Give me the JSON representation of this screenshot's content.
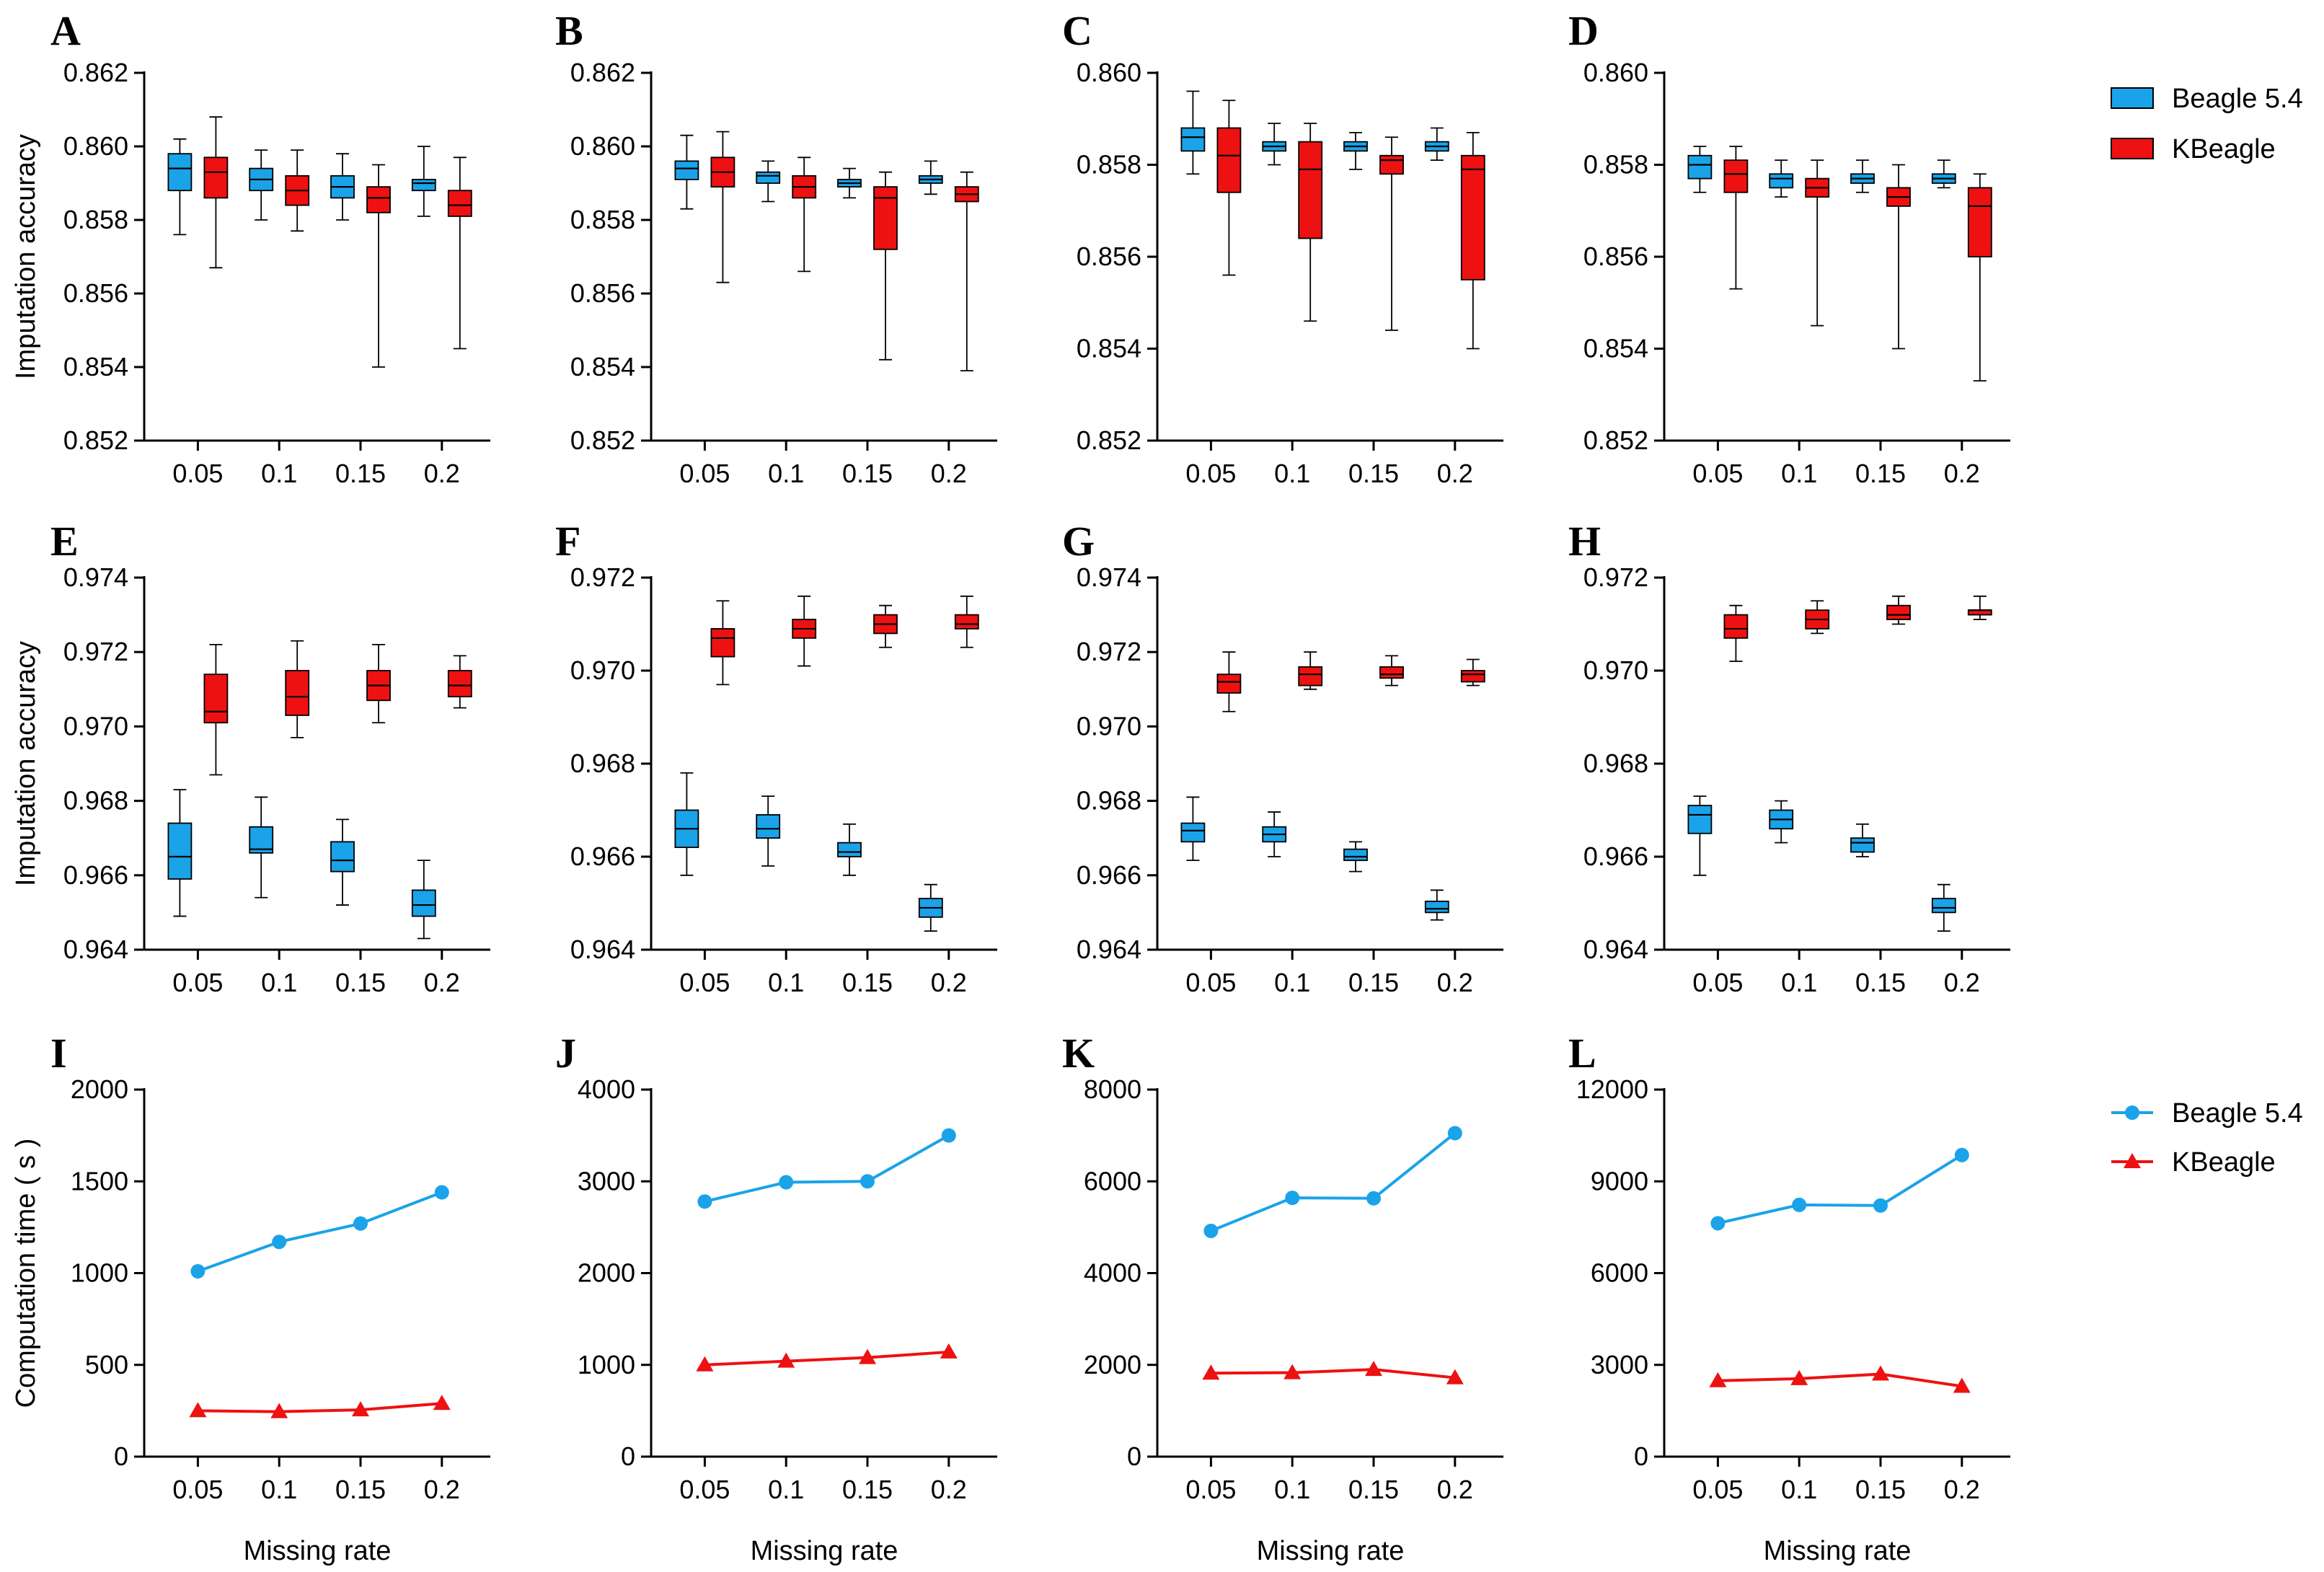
{
  "figure": {
    "colors": {
      "beagle": "#1aa3e8",
      "kbeagle": "#ee1111",
      "axis": "#000000"
    },
    "legend_top": [
      {
        "label": "Beagle 5.4",
        "color": "#1aa3e8",
        "marker": "box"
      },
      {
        "label": "KBeagle",
        "color": "#ee1111",
        "marker": "box"
      }
    ],
    "legend_bottom": [
      {
        "label": "Beagle 5.4",
        "color": "#1aa3e8",
        "marker": "circle"
      },
      {
        "label": "KBeagle",
        "color": "#ee1111",
        "marker": "triangle"
      }
    ],
    "row_ylabels": [
      "Imputation accuracy",
      "Imputation accuracy",
      "Computation time ( s )"
    ],
    "xlabel": "Missing rate"
  },
  "chart_data": [
    {
      "panel": "A",
      "type": "box",
      "categories": [
        "0.05",
        "0.1",
        "0.15",
        "0.2"
      ],
      "ylim": [
        0.852,
        0.862
      ],
      "yticks": [
        "0.852",
        "0.854",
        "0.856",
        "0.858",
        "0.860",
        "0.862"
      ],
      "xlabel": "",
      "ylabel": "Imputation accuracy",
      "series": [
        {
          "name": "Beagle 5.4",
          "boxes": [
            {
              "min": 0.8576,
              "q1": 0.8588,
              "median": 0.8594,
              "q3": 0.8598,
              "max": 0.8602
            },
            {
              "min": 0.858,
              "q1": 0.8588,
              "median": 0.8591,
              "q3": 0.8594,
              "max": 0.8599
            },
            {
              "min": 0.858,
              "q1": 0.8586,
              "median": 0.8589,
              "q3": 0.8592,
              "max": 0.8598
            },
            {
              "min": 0.8581,
              "q1": 0.8588,
              "median": 0.859,
              "q3": 0.8591,
              "max": 0.86
            }
          ]
        },
        {
          "name": "KBeagle",
          "boxes": [
            {
              "min": 0.8567,
              "q1": 0.8586,
              "median": 0.8593,
              "q3": 0.8597,
              "max": 0.8608
            },
            {
              "min": 0.8577,
              "q1": 0.8584,
              "median": 0.8588,
              "q3": 0.8592,
              "max": 0.8599
            },
            {
              "min": 0.854,
              "q1": 0.8582,
              "median": 0.8586,
              "q3": 0.8589,
              "max": 0.8595
            },
            {
              "min": 0.8545,
              "q1": 0.8581,
              "median": 0.8584,
              "q3": 0.8588,
              "max": 0.8597
            }
          ]
        }
      ]
    },
    {
      "panel": "B",
      "type": "box",
      "categories": [
        "0.05",
        "0.1",
        "0.15",
        "0.2"
      ],
      "ylim": [
        0.852,
        0.862
      ],
      "yticks": [
        "0.852",
        "0.854",
        "0.856",
        "0.858",
        "0.860",
        "0.862"
      ],
      "xlabel": "",
      "ylabel": "",
      "series": [
        {
          "name": "Beagle 5.4",
          "boxes": [
            {
              "min": 0.8583,
              "q1": 0.8591,
              "median": 0.8594,
              "q3": 0.8596,
              "max": 0.8603
            },
            {
              "min": 0.8585,
              "q1": 0.859,
              "median": 0.8592,
              "q3": 0.8593,
              "max": 0.8596
            },
            {
              "min": 0.8586,
              "q1": 0.8589,
              "median": 0.859,
              "q3": 0.8591,
              "max": 0.8594
            },
            {
              "min": 0.8587,
              "q1": 0.859,
              "median": 0.8591,
              "q3": 0.8592,
              "max": 0.8596
            }
          ]
        },
        {
          "name": "KBeagle",
          "boxes": [
            {
              "min": 0.8563,
              "q1": 0.8589,
              "median": 0.8593,
              "q3": 0.8597,
              "max": 0.8604
            },
            {
              "min": 0.8566,
              "q1": 0.8586,
              "median": 0.8589,
              "q3": 0.8592,
              "max": 0.8597
            },
            {
              "min": 0.8542,
              "q1": 0.8572,
              "median": 0.8586,
              "q3": 0.8589,
              "max": 0.8593
            },
            {
              "min": 0.8539,
              "q1": 0.8585,
              "median": 0.8587,
              "q3": 0.8589,
              "max": 0.8593
            }
          ]
        }
      ]
    },
    {
      "panel": "C",
      "type": "box",
      "categories": [
        "0.05",
        "0.1",
        "0.15",
        "0.2"
      ],
      "ylim": [
        0.852,
        0.86
      ],
      "yticks": [
        "0.852",
        "0.854",
        "0.856",
        "0.858",
        "0.860"
      ],
      "xlabel": "",
      "ylabel": "",
      "series": [
        {
          "name": "Beagle 5.4",
          "boxes": [
            {
              "min": 0.8578,
              "q1": 0.8583,
              "median": 0.8586,
              "q3": 0.8588,
              "max": 0.8596
            },
            {
              "min": 0.858,
              "q1": 0.8583,
              "median": 0.8584,
              "q3": 0.8585,
              "max": 0.8589
            },
            {
              "min": 0.8579,
              "q1": 0.8583,
              "median": 0.8584,
              "q3": 0.8585,
              "max": 0.8587
            },
            {
              "min": 0.8581,
              "q1": 0.8583,
              "median": 0.8584,
              "q3": 0.8585,
              "max": 0.8588
            }
          ]
        },
        {
          "name": "KBeagle",
          "boxes": [
            {
              "min": 0.8556,
              "q1": 0.8574,
              "median": 0.8582,
              "q3": 0.8588,
              "max": 0.8594
            },
            {
              "min": 0.8546,
              "q1": 0.8564,
              "median": 0.8579,
              "q3": 0.8585,
              "max": 0.8589
            },
            {
              "min": 0.8544,
              "q1": 0.8578,
              "median": 0.8581,
              "q3": 0.8582,
              "max": 0.8586
            },
            {
              "min": 0.854,
              "q1": 0.8555,
              "median": 0.8579,
              "q3": 0.8582,
              "max": 0.8587
            }
          ]
        }
      ]
    },
    {
      "panel": "D",
      "type": "box",
      "categories": [
        "0.05",
        "0.1",
        "0.15",
        "0.2"
      ],
      "ylim": [
        0.852,
        0.86
      ],
      "yticks": [
        "0.852",
        "0.854",
        "0.856",
        "0.858",
        "0.860"
      ],
      "xlabel": "",
      "ylabel": "",
      "series": [
        {
          "name": "Beagle 5.4",
          "boxes": [
            {
              "min": 0.8574,
              "q1": 0.8577,
              "median": 0.858,
              "q3": 0.8582,
              "max": 0.8584
            },
            {
              "min": 0.8573,
              "q1": 0.8575,
              "median": 0.8577,
              "q3": 0.8578,
              "max": 0.8581
            },
            {
              "min": 0.8574,
              "q1": 0.8576,
              "median": 0.8577,
              "q3": 0.8578,
              "max": 0.8581
            },
            {
              "min": 0.8575,
              "q1": 0.8576,
              "median": 0.8577,
              "q3": 0.8578,
              "max": 0.8581
            }
          ]
        },
        {
          "name": "KBeagle",
          "boxes": [
            {
              "min": 0.8553,
              "q1": 0.8574,
              "median": 0.8578,
              "q3": 0.8581,
              "max": 0.8584
            },
            {
              "min": 0.8545,
              "q1": 0.8573,
              "median": 0.8575,
              "q3": 0.8577,
              "max": 0.8581
            },
            {
              "min": 0.854,
              "q1": 0.8571,
              "median": 0.8573,
              "q3": 0.8575,
              "max": 0.858
            },
            {
              "min": 0.8533,
              "q1": 0.856,
              "median": 0.8571,
              "q3": 0.8575,
              "max": 0.8578
            }
          ]
        }
      ]
    },
    {
      "panel": "E",
      "type": "box",
      "categories": [
        "0.05",
        "0.1",
        "0.15",
        "0.2"
      ],
      "ylim": [
        0.964,
        0.974
      ],
      "yticks": [
        "0.964",
        "0.966",
        "0.968",
        "0.970",
        "0.972",
        "0.974"
      ],
      "xlabel": "",
      "ylabel": "Imputation accuracy",
      "series": [
        {
          "name": "Beagle 5.4",
          "boxes": [
            {
              "min": 0.9649,
              "q1": 0.9659,
              "median": 0.9665,
              "q3": 0.9674,
              "max": 0.9683
            },
            {
              "min": 0.9654,
              "q1": 0.9666,
              "median": 0.9667,
              "q3": 0.9673,
              "max": 0.9681
            },
            {
              "min": 0.9652,
              "q1": 0.9661,
              "median": 0.9664,
              "q3": 0.9669,
              "max": 0.9675
            },
            {
              "min": 0.9643,
              "q1": 0.9649,
              "median": 0.9652,
              "q3": 0.9656,
              "max": 0.9664
            }
          ]
        },
        {
          "name": "KBeagle",
          "boxes": [
            {
              "min": 0.9687,
              "q1": 0.9701,
              "median": 0.9704,
              "q3": 0.9714,
              "max": 0.9722
            },
            {
              "min": 0.9697,
              "q1": 0.9703,
              "median": 0.9708,
              "q3": 0.9715,
              "max": 0.9723
            },
            {
              "min": 0.9701,
              "q1": 0.9707,
              "median": 0.9711,
              "q3": 0.9715,
              "max": 0.9722
            },
            {
              "min": 0.9705,
              "q1": 0.9708,
              "median": 0.9711,
              "q3": 0.9715,
              "max": 0.9719
            }
          ]
        }
      ]
    },
    {
      "panel": "F",
      "type": "box",
      "categories": [
        "0.05",
        "0.1",
        "0.15",
        "0.2"
      ],
      "ylim": [
        0.964,
        0.972
      ],
      "yticks": [
        "0.964",
        "0.966",
        "0.968",
        "0.970",
        "0.972"
      ],
      "xlabel": "",
      "ylabel": "",
      "series": [
        {
          "name": "Beagle 5.4",
          "boxes": [
            {
              "min": 0.9656,
              "q1": 0.9662,
              "median": 0.9666,
              "q3": 0.967,
              "max": 0.9678
            },
            {
              "min": 0.9658,
              "q1": 0.9664,
              "median": 0.9666,
              "q3": 0.9669,
              "max": 0.9673
            },
            {
              "min": 0.9656,
              "q1": 0.966,
              "median": 0.9661,
              "q3": 0.9663,
              "max": 0.9667
            },
            {
              "min": 0.9644,
              "q1": 0.9647,
              "median": 0.9649,
              "q3": 0.9651,
              "max": 0.9654
            }
          ]
        },
        {
          "name": "KBeagle",
          "boxes": [
            {
              "min": 0.9697,
              "q1": 0.9703,
              "median": 0.9707,
              "q3": 0.9709,
              "max": 0.9715
            },
            {
              "min": 0.9701,
              "q1": 0.9707,
              "median": 0.9709,
              "q3": 0.9711,
              "max": 0.9716
            },
            {
              "min": 0.9705,
              "q1": 0.9708,
              "median": 0.971,
              "q3": 0.9712,
              "max": 0.9714
            },
            {
              "min": 0.9705,
              "q1": 0.9709,
              "median": 0.971,
              "q3": 0.9712,
              "max": 0.9716
            }
          ]
        }
      ]
    },
    {
      "panel": "G",
      "type": "box",
      "categories": [
        "0.05",
        "0.1",
        "0.15",
        "0.2"
      ],
      "ylim": [
        0.964,
        0.974
      ],
      "yticks": [
        "0.964",
        "0.966",
        "0.968",
        "0.970",
        "0.972",
        "0.974"
      ],
      "xlabel": "",
      "ylabel": "",
      "series": [
        {
          "name": "Beagle 5.4",
          "boxes": [
            {
              "min": 0.9664,
              "q1": 0.9669,
              "median": 0.9672,
              "q3": 0.9674,
              "max": 0.9681
            },
            {
              "min": 0.9665,
              "q1": 0.9669,
              "median": 0.9671,
              "q3": 0.9673,
              "max": 0.9677
            },
            {
              "min": 0.9661,
              "q1": 0.9664,
              "median": 0.9665,
              "q3": 0.9667,
              "max": 0.9669
            },
            {
              "min": 0.9648,
              "q1": 0.965,
              "median": 0.9651,
              "q3": 0.9653,
              "max": 0.9656
            }
          ]
        },
        {
          "name": "KBeagle",
          "boxes": [
            {
              "min": 0.9704,
              "q1": 0.9709,
              "median": 0.9712,
              "q3": 0.9714,
              "max": 0.972
            },
            {
              "min": 0.971,
              "q1": 0.9711,
              "median": 0.9714,
              "q3": 0.9716,
              "max": 0.972
            },
            {
              "min": 0.9711,
              "q1": 0.9713,
              "median": 0.9714,
              "q3": 0.9716,
              "max": 0.9719
            },
            {
              "min": 0.9711,
              "q1": 0.9712,
              "median": 0.9714,
              "q3": 0.9715,
              "max": 0.9718
            }
          ]
        }
      ]
    },
    {
      "panel": "H",
      "type": "box",
      "categories": [
        "0.05",
        "0.1",
        "0.15",
        "0.2"
      ],
      "ylim": [
        0.964,
        0.972
      ],
      "yticks": [
        "0.964",
        "0.966",
        "0.968",
        "0.970",
        "0.972"
      ],
      "xlabel": "",
      "ylabel": "",
      "series": [
        {
          "name": "Beagle 5.4",
          "boxes": [
            {
              "min": 0.9656,
              "q1": 0.9665,
              "median": 0.9669,
              "q3": 0.9671,
              "max": 0.9673
            },
            {
              "min": 0.9663,
              "q1": 0.9666,
              "median": 0.9668,
              "q3": 0.967,
              "max": 0.9672
            },
            {
              "min": 0.966,
              "q1": 0.9661,
              "median": 0.9663,
              "q3": 0.9664,
              "max": 0.9667
            },
            {
              "min": 0.9644,
              "q1": 0.9648,
              "median": 0.9649,
              "q3": 0.9651,
              "max": 0.9654
            }
          ]
        },
        {
          "name": "KBeagle",
          "boxes": [
            {
              "min": 0.9702,
              "q1": 0.9707,
              "median": 0.9709,
              "q3": 0.9712,
              "max": 0.9714
            },
            {
              "min": 0.9708,
              "q1": 0.9709,
              "median": 0.9711,
              "q3": 0.9713,
              "max": 0.9715
            },
            {
              "min": 0.971,
              "q1": 0.9711,
              "median": 0.9712,
              "q3": 0.9714,
              "max": 0.9716
            },
            {
              "min": 0.9711,
              "q1": 0.9712,
              "median": 0.9713,
              "q3": 0.9713,
              "max": 0.9716
            }
          ]
        }
      ]
    },
    {
      "panel": "I",
      "type": "line",
      "x": [
        "0.05",
        "0.1",
        "0.15",
        "0.2"
      ],
      "ylim": [
        0,
        2000
      ],
      "yticks": [
        "0",
        "500",
        "1000",
        "1500",
        "2000"
      ],
      "xlabel": "Missing rate",
      "ylabel": "Computation time ( s )",
      "series": [
        {
          "name": "Beagle 5.4",
          "marker": "circle",
          "values": [
            1010,
            1170,
            1270,
            1440
          ]
        },
        {
          "name": "KBeagle",
          "marker": "triangle",
          "values": [
            250,
            245,
            255,
            290
          ]
        }
      ]
    },
    {
      "panel": "J",
      "type": "line",
      "x": [
        "0.05",
        "0.1",
        "0.15",
        "0.2"
      ],
      "ylim": [
        0,
        4000
      ],
      "yticks": [
        "0",
        "1000",
        "2000",
        "3000",
        "4000"
      ],
      "xlabel": "Missing rate",
      "ylabel": "",
      "series": [
        {
          "name": "Beagle 5.4",
          "marker": "circle",
          "values": [
            2780,
            2990,
            3000,
            3500
          ]
        },
        {
          "name": "KBeagle",
          "marker": "triangle",
          "values": [
            1000,
            1040,
            1080,
            1140
          ]
        }
      ]
    },
    {
      "panel": "K",
      "type": "line",
      "x": [
        "0.05",
        "0.1",
        "0.15",
        "0.2"
      ],
      "ylim": [
        0,
        8000
      ],
      "yticks": [
        "0",
        "2000",
        "4000",
        "6000",
        "8000"
      ],
      "xlabel": "Missing rate",
      "ylabel": "",
      "series": [
        {
          "name": "Beagle 5.4",
          "marker": "circle",
          "values": [
            4920,
            5640,
            5630,
            7050
          ]
        },
        {
          "name": "KBeagle",
          "marker": "triangle",
          "values": [
            1820,
            1830,
            1900,
            1720
          ]
        }
      ]
    },
    {
      "panel": "L",
      "type": "line",
      "x": [
        "0.05",
        "0.1",
        "0.15",
        "0.2"
      ],
      "ylim": [
        0,
        12000
      ],
      "yticks": [
        "0",
        "3000",
        "6000",
        "9000",
        "12000"
      ],
      "xlabel": "Missing rate",
      "ylabel": "",
      "series": [
        {
          "name": "Beagle 5.4",
          "marker": "circle",
          "values": [
            7630,
            8230,
            8210,
            9860
          ]
        },
        {
          "name": "KBeagle",
          "marker": "triangle",
          "values": [
            2480,
            2550,
            2700,
            2300
          ]
        }
      ]
    }
  ]
}
